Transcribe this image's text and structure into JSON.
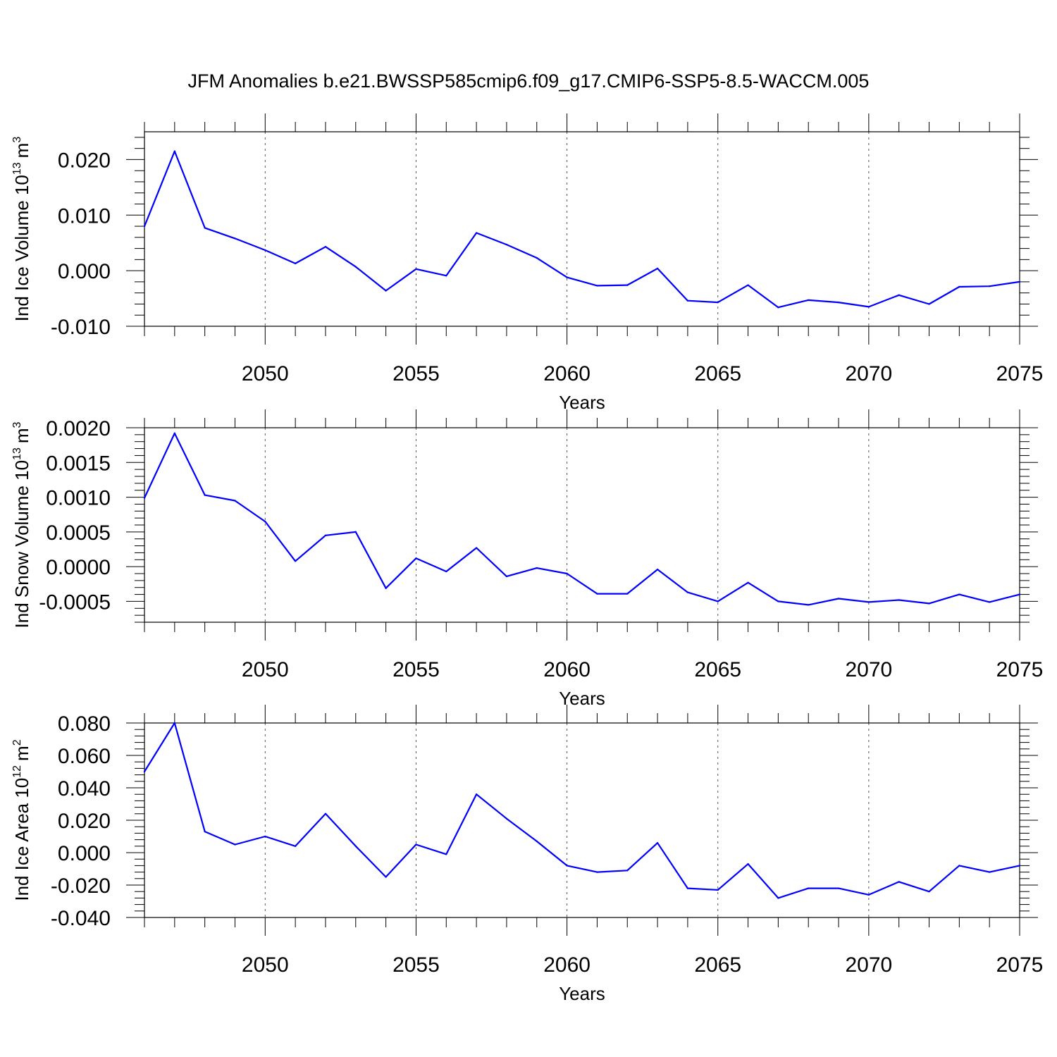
{
  "title": "JFM Anomalies b.e21.BWSSP585cmip6.f09_g17.CMIP6-SSP5-8.5-WACCM.005",
  "colors": {
    "series": "#0000ff",
    "axis": "#000000",
    "grid": "#555555"
  },
  "chart_data": [
    {
      "type": "line",
      "ylabel": "Ind Ice Volume 10",
      "ylabel_exp": "13",
      "ylabel_unit": "m",
      "ylabel_unit_exp": "3",
      "xlabel": "Years",
      "xlim": [
        2046,
        2075
      ],
      "ylim": [
        -0.01,
        0.025
      ],
      "yticks": [
        -0.01,
        0.0,
        0.01,
        0.02
      ],
      "ytick_labels": [
        "-0.010",
        "0.000",
        "0.010",
        "0.020"
      ],
      "xticks": [
        2050,
        2055,
        2060,
        2065,
        2070,
        2075
      ],
      "xtick_labels": [
        "2050",
        "2055",
        "2060",
        "2065",
        "2070",
        "2075"
      ],
      "grid": "x-dashed",
      "x": [
        2046,
        2047,
        2048,
        2049,
        2050,
        2051,
        2052,
        2053,
        2054,
        2055,
        2056,
        2057,
        2058,
        2059,
        2060,
        2061,
        2062,
        2063,
        2064,
        2065,
        2066,
        2067,
        2068,
        2069,
        2070,
        2071,
        2072,
        2073,
        2074,
        2075
      ],
      "y": [
        0.008,
        0.0215,
        0.0077,
        0.0058,
        0.0037,
        0.0013,
        0.0043,
        0.0007,
        -0.0036,
        0.0003,
        -0.0009,
        0.0068,
        0.0047,
        0.0023,
        -0.0012,
        -0.0027,
        -0.0026,
        0.0004,
        -0.0054,
        -0.0057,
        -0.0026,
        -0.0066,
        -0.0053,
        -0.0057,
        -0.0065,
        -0.0044,
        -0.006,
        -0.0029,
        -0.0028,
        -0.002
      ]
    },
    {
      "type": "line",
      "ylabel": "Ind Snow Volume 10",
      "ylabel_exp": "13",
      "ylabel_unit": "m",
      "ylabel_unit_exp": "3",
      "xlabel": "Years",
      "xlim": [
        2046,
        2075
      ],
      "ylim": [
        -0.0008,
        0.002
      ],
      "yticks": [
        -0.0005,
        0.0,
        0.0005,
        0.001,
        0.0015,
        0.002
      ],
      "ytick_labels": [
        "-0.0005",
        "0.0000",
        "0.0005",
        "0.0010",
        "0.0015",
        "0.0020"
      ],
      "xticks": [
        2050,
        2055,
        2060,
        2065,
        2070,
        2075
      ],
      "xtick_labels": [
        "2050",
        "2055",
        "2060",
        "2065",
        "2070",
        "2075"
      ],
      "grid": "x-dashed",
      "x": [
        2046,
        2047,
        2048,
        2049,
        2050,
        2051,
        2052,
        2053,
        2054,
        2055,
        2056,
        2057,
        2058,
        2059,
        2060,
        2061,
        2062,
        2063,
        2064,
        2065,
        2066,
        2067,
        2068,
        2069,
        2070,
        2071,
        2072,
        2073,
        2074,
        2075
      ],
      "y": [
        0.00099,
        0.00192,
        0.00103,
        0.00095,
        0.00065,
        8e-05,
        0.00045,
        0.0005,
        -0.00031,
        0.00012,
        -7e-05,
        0.00027,
        -0.00014,
        -2e-05,
        -0.0001,
        -0.00039,
        -0.00039,
        -4e-05,
        -0.00037,
        -0.0005,
        -0.00023,
        -0.0005,
        -0.00055,
        -0.00046,
        -0.00051,
        -0.00048,
        -0.00053,
        -0.0004,
        -0.00051,
        -0.0004
      ]
    },
    {
      "type": "line",
      "ylabel": "Ind Ice Area 10",
      "ylabel_exp": "12",
      "ylabel_unit": "m",
      "ylabel_unit_exp": "2",
      "xlabel": "Years",
      "xlim": [
        2046,
        2075
      ],
      "ylim": [
        -0.04,
        0.08
      ],
      "yticks": [
        -0.04,
        -0.02,
        0.0,
        0.02,
        0.04,
        0.06,
        0.08
      ],
      "ytick_labels": [
        "-0.040",
        "-0.020",
        "0.000",
        "0.020",
        "0.040",
        "0.060",
        "0.080"
      ],
      "xticks": [
        2050,
        2055,
        2060,
        2065,
        2070,
        2075
      ],
      "xtick_labels": [
        "2050",
        "2055",
        "2060",
        "2065",
        "2070",
        "2075"
      ],
      "grid": "x-dashed",
      "x": [
        2046,
        2047,
        2048,
        2049,
        2050,
        2051,
        2052,
        2053,
        2054,
        2055,
        2056,
        2057,
        2058,
        2059,
        2060,
        2061,
        2062,
        2063,
        2064,
        2065,
        2066,
        2067,
        2068,
        2069,
        2070,
        2071,
        2072,
        2073,
        2074,
        2075
      ],
      "y": [
        0.05,
        0.08,
        0.013,
        0.005,
        0.01,
        0.004,
        0.024,
        0.004,
        -0.015,
        0.005,
        -0.001,
        0.036,
        0.021,
        0.007,
        -0.008,
        -0.012,
        -0.011,
        0.006,
        -0.022,
        -0.023,
        -0.007,
        -0.028,
        -0.022,
        -0.022,
        -0.026,
        -0.018,
        -0.024,
        -0.008,
        -0.012,
        -0.008
      ]
    }
  ]
}
